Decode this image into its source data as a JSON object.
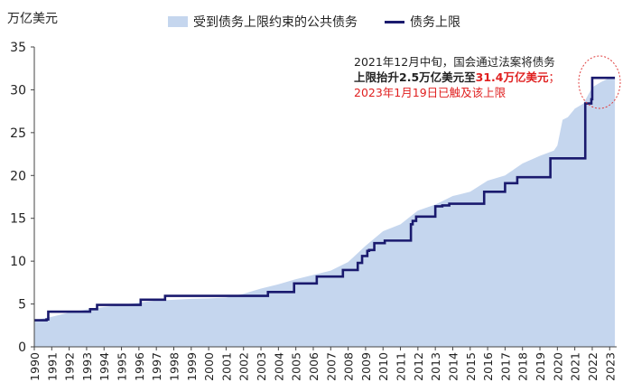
{
  "chart_data": {
    "type": "area",
    "unit": "万亿美元",
    "xlabel": "",
    "ylabel": "",
    "ylim": [
      0,
      35
    ],
    "xlim": [
      1990,
      2023.4
    ],
    "yticks": [
      0,
      5,
      10,
      15,
      20,
      25,
      30,
      35
    ],
    "xticks": [
      "1990",
      "1991",
      "1992",
      "1993",
      "1994",
      "1995",
      "1996",
      "1997",
      "1998",
      "1999",
      "2000",
      "2001",
      "2002",
      "2003",
      "2004",
      "2005",
      "2006",
      "2007",
      "2008",
      "2009",
      "2010",
      "2011",
      "2012",
      "2013",
      "2014",
      "2015",
      "2016",
      "2017",
      "2018",
      "2019",
      "2020",
      "2021",
      "2022",
      "2023"
    ],
    "legend_position": "top",
    "series": [
      {
        "name": "受到债务上限约束的公共债务",
        "kind": "area",
        "color": "#c5d6ee",
        "x": [
          1990,
          1991,
          1992,
          1993,
          1994,
          1995,
          1996,
          1997,
          1998,
          1999,
          2000,
          2001,
          2002,
          2003,
          2004,
          2005,
          2006,
          2007,
          2008,
          2009,
          2010,
          2011,
          2012,
          2013,
          2014,
          2015,
          2016,
          2017,
          2018,
          2019,
          2019.8,
          2020,
          2020.3,
          2020.6,
          2021,
          2021.5,
          2022,
          2022.5,
          2023,
          2023.3
        ],
        "y": [
          3.1,
          3.5,
          4.0,
          4.35,
          4.65,
          4.9,
          5.15,
          5.4,
          5.5,
          5.6,
          5.65,
          5.75,
          6.2,
          6.8,
          7.3,
          7.9,
          8.4,
          8.9,
          9.9,
          11.8,
          13.5,
          14.3,
          15.9,
          16.6,
          17.6,
          18.1,
          19.4,
          20.0,
          21.4,
          22.3,
          22.9,
          23.5,
          26.5,
          26.8,
          27.8,
          28.4,
          30.3,
          30.9,
          31.4,
          31.4
        ]
      },
      {
        "name": "债务上限",
        "kind": "step",
        "color": "#1a1a6e",
        "x": [
          1990,
          1990.7,
          1990.8,
          1993.0,
          1993.2,
          1993.6,
          1996.1,
          1997.5,
          2002.5,
          2003.4,
          2004.9,
          2006.2,
          2007.7,
          2008.55,
          2008.8,
          2009.1,
          2009.2,
          2009.5,
          2010.1,
          2011.6,
          2011.7,
          2011.9,
          2013.0,
          2013.4,
          2013.8,
          2014.1,
          2015.8,
          2016.0,
          2017.0,
          2017.7,
          2018.0,
          2019.6,
          2019.8,
          2021.6,
          2021.95,
          2022.0,
          2023.3
        ],
        "y": [
          3.1,
          3.2,
          4.1,
          4.1,
          4.4,
          4.9,
          5.5,
          5.95,
          5.95,
          6.4,
          7.4,
          8.2,
          8.97,
          9.8,
          10.6,
          11.2,
          11.3,
          12.1,
          12.4,
          14.3,
          14.7,
          15.2,
          16.4,
          16.5,
          16.7,
          16.7,
          18.1,
          18.1,
          19.1,
          19.8,
          19.8,
          22.0,
          22.0,
          28.4,
          28.9,
          31.4,
          31.4
        ]
      }
    ]
  },
  "legend": {
    "area_label": "受到债务上限约束的公共债务",
    "line_label": "债务上限"
  },
  "annotation": {
    "line1": "2021年12月中旬，国会通过法案将债务",
    "line2_a": "上限抬升2.5万亿美元至",
    "line2_b": "31.4万亿美元",
    "line2_c": "；",
    "line3": "2023年1月19日已触及该上限"
  }
}
